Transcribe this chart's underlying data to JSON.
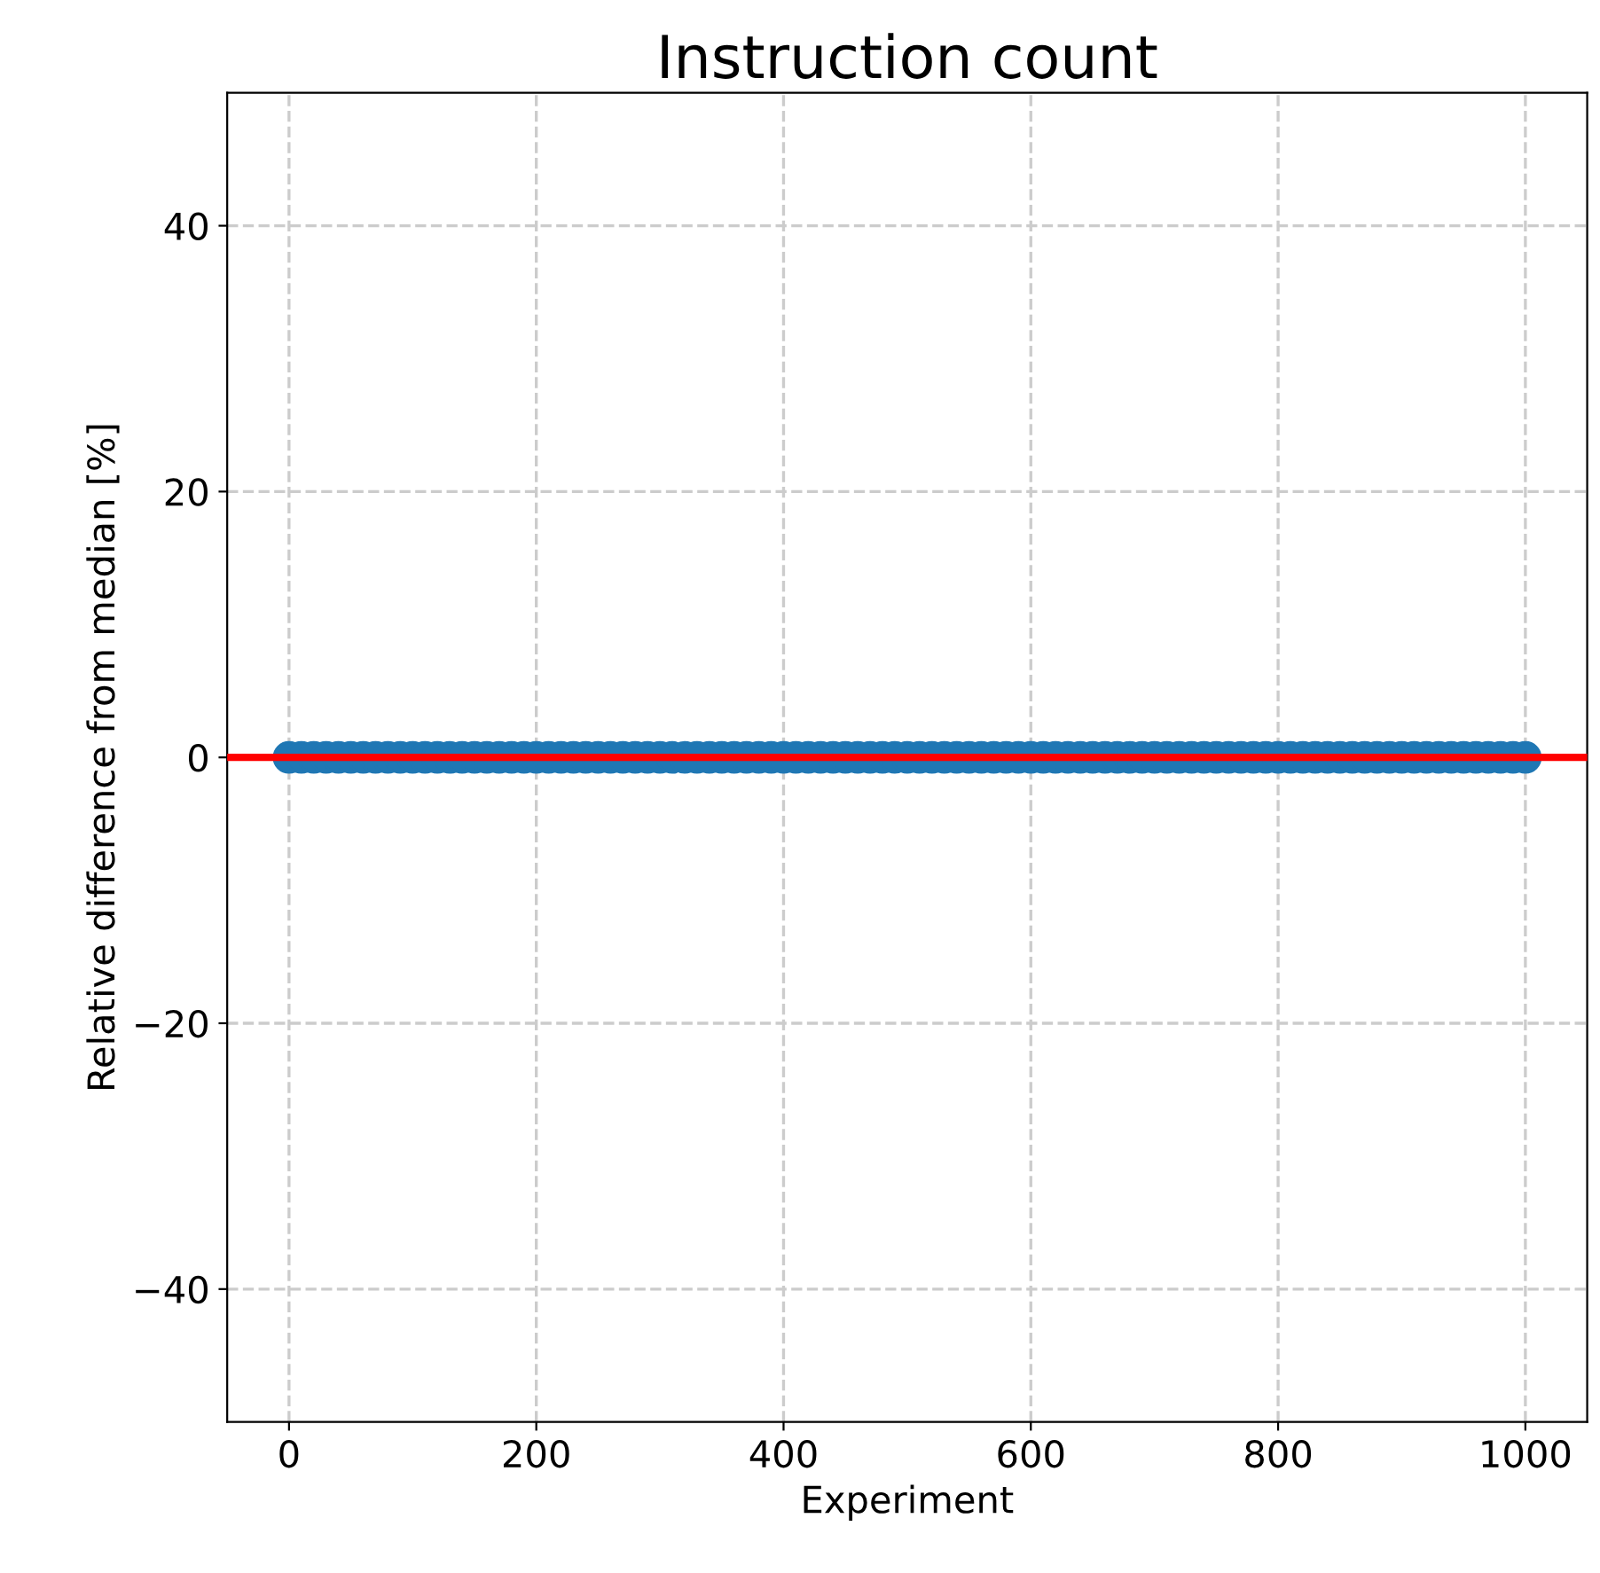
{
  "chart_data": {
    "type": "scatter",
    "title": "Instruction count",
    "xlabel": "Experiment",
    "ylabel": "Relative difference from median [%]",
    "x": [
      0,
      10,
      20,
      30,
      40,
      50,
      60,
      70,
      80,
      90,
      100,
      110,
      120,
      130,
      140,
      150,
      160,
      170,
      180,
      190,
      200,
      210,
      220,
      230,
      240,
      250,
      260,
      270,
      280,
      290,
      300,
      310,
      320,
      330,
      340,
      350,
      360,
      370,
      380,
      390,
      400,
      410,
      420,
      430,
      440,
      450,
      460,
      470,
      480,
      490,
      500,
      510,
      520,
      530,
      540,
      550,
      560,
      570,
      580,
      590,
      600,
      610,
      620,
      630,
      640,
      650,
      660,
      670,
      680,
      690,
      700,
      710,
      720,
      730,
      740,
      750,
      760,
      770,
      780,
      790,
      800,
      810,
      820,
      830,
      840,
      850,
      860,
      870,
      880,
      890,
      900,
      910,
      920,
      930,
      940,
      950,
      960,
      970,
      980,
      990,
      1000
    ],
    "series": [
      {
        "color": "#1f77b4",
        "values": [
          0,
          0,
          0,
          0,
          0,
          0,
          0,
          0,
          0,
          0,
          0,
          0,
          0,
          0,
          0,
          0,
          0,
          0,
          0,
          0,
          0,
          0,
          0,
          0,
          0,
          0,
          0,
          0,
          0,
          0,
          0,
          0,
          0,
          0,
          0,
          0,
          0,
          0,
          0,
          0,
          0,
          0,
          0,
          0,
          0,
          0,
          0,
          0,
          0,
          0,
          0,
          0,
          0,
          0,
          0,
          0,
          0,
          0,
          0,
          0,
          0,
          0,
          0,
          0,
          0,
          0,
          0,
          0,
          0,
          0,
          0,
          0,
          0,
          0,
          0,
          0,
          0,
          0,
          0,
          0,
          0,
          0,
          0,
          0,
          0,
          0,
          0,
          0,
          0,
          0,
          0,
          0,
          0,
          0,
          0,
          0,
          0,
          0,
          0,
          0,
          0
        ]
      }
    ],
    "xlim": [
      -50,
      1050
    ],
    "xticks": [
      0,
      200,
      400,
      600,
      800,
      1000
    ],
    "ylim": [
      -50,
      50
    ],
    "yticks": [
      {
        "value": -40,
        "label": "−40"
      },
      {
        "value": -20,
        "label": "−20"
      },
      0,
      20,
      40
    ],
    "ref_lines": [
      {
        "axis": "y",
        "value": 0,
        "color": "#ff0000",
        "line_style": "solid"
      }
    ],
    "grid": true,
    "marker": "circle"
  }
}
